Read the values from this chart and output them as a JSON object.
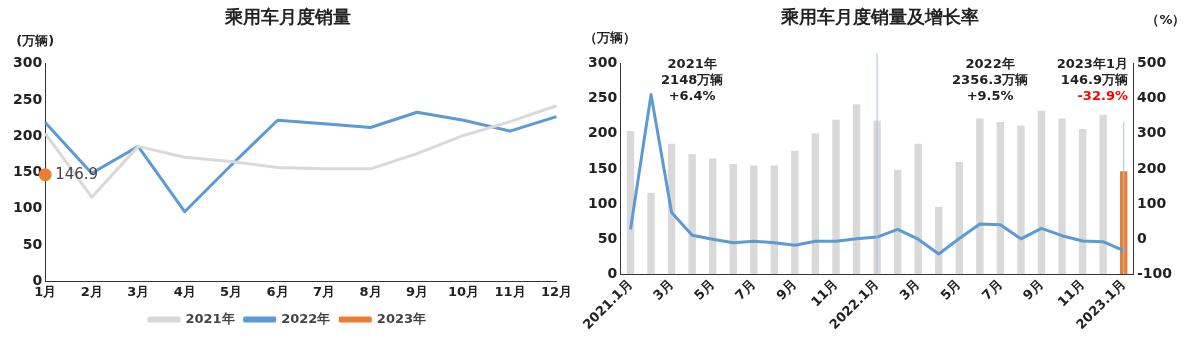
{
  "chart_data": [
    {
      "type": "line",
      "title": "乘用车月度销量",
      "ylabel": "(万辆)",
      "categories": [
        "1月",
        "2月",
        "3月",
        "4月",
        "5月",
        "6月",
        "7月",
        "8月",
        "9月",
        "10月",
        "11月",
        "12月"
      ],
      "series": [
        {
          "name": "2021年",
          "color": "#d9d9d9",
          "values": [
            204,
            116,
            186,
            171,
            165,
            157,
            155,
            155,
            176,
            201,
            220,
            242
          ]
        },
        {
          "name": "2022年",
          "color": "#5b9bd5",
          "values": [
            219,
            149,
            186,
            96,
            160,
            222,
            217,
            212,
            233,
            222,
            207,
            227
          ]
        },
        {
          "name": "2023年",
          "color": "#ed7d31",
          "marker": "circle",
          "values": [
            146.9,
            null,
            null,
            null,
            null,
            null,
            null,
            null,
            null,
            null,
            null,
            null
          ],
          "value_labels": [
            "146.9",
            null,
            null,
            null,
            null,
            null,
            null,
            null,
            null,
            null,
            null,
            null
          ]
        }
      ],
      "ylim": [
        0,
        300
      ],
      "yticks": [
        0,
        50,
        100,
        150,
        200,
        250,
        300
      ],
      "grid": false,
      "legend": "bottom",
      "marker": "none"
    },
    {
      "type": "bar",
      "title": "乘用车月度销量及增长率",
      "ylabel": "（万辆）",
      "y2label": "（%）",
      "categories": [
        "2021.1月",
        null,
        "3月",
        null,
        "5月",
        null,
        "7月",
        null,
        "9月",
        null,
        "11月",
        null,
        "2022.1月",
        null,
        "3月",
        null,
        "5月",
        null,
        "7月",
        null,
        "9月",
        null,
        "11月",
        null,
        "2023.1月"
      ],
      "series": [
        {
          "colors": [
            "#d9d9d9",
            "#d9d9d9",
            "#d9d9d9",
            "#d9d9d9",
            "#d9d9d9",
            "#d9d9d9",
            "#d9d9d9",
            "#d9d9d9",
            "#d9d9d9",
            "#d9d9d9",
            "#d9d9d9",
            "#d9d9d9",
            "#d9d9d9",
            "#d9d9d9",
            "#d9d9d9",
            "#d9d9d9",
            "#d9d9d9",
            "#d9d9d9",
            "#d9d9d9",
            "#d9d9d9",
            "#d9d9d9",
            "#d9d9d9",
            "#d9d9d9",
            "#d9d9d9",
            "#ed7d31"
          ],
          "values": [
            204,
            116,
            186,
            171,
            165,
            157,
            155,
            155,
            176,
            201,
            220,
            242,
            219,
            149,
            186,
            96,
            160,
            222,
            217,
            212,
            233,
            222,
            207,
            227,
            146.9
          ]
        },
        {
          "type": "line",
          "axis": "y2",
          "color": "#5b9bd5",
          "values": [
            28,
            412,
            76,
            11,
            0,
            -10,
            -6,
            -10,
            -17,
            -6,
            -6,
            1,
            6,
            28,
            0,
            -42,
            2,
            43,
            41,
            1,
            31,
            10,
            -5,
            -7,
            -32.9
          ]
        }
      ],
      "ylim": [
        0,
        300
      ],
      "yticks": [
        0,
        50,
        100,
        150,
        200,
        250,
        300
      ],
      "y2lim": [
        -100,
        500
      ],
      "y2ticks": [
        -100,
        0,
        100,
        200,
        300,
        400,
        500
      ],
      "ref_lines": [
        {
          "axis": "x",
          "value": "2022.1月",
          "color": "#9dc3e6"
        },
        {
          "axis": "x",
          "value": "2023.1月",
          "color": "#9dc3e6"
        }
      ],
      "annotations": [
        "2021年\n2148万辆\n+6.4%",
        "2022年\n2356.3万辆\n+9.5%",
        "2023年1月\n146.9万辆\n-32.9%"
      ],
      "grid": false,
      "legend": false,
      "marker": "none"
    }
  ]
}
